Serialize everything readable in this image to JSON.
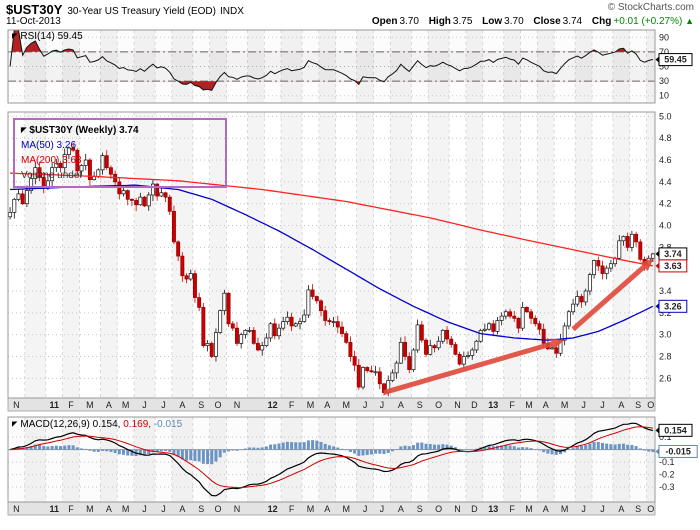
{
  "header": {
    "symbol": "$UST30Y",
    "title": "30-Year US Treasury Yield (EOD)",
    "exchange": "INDX",
    "copyright": "© StockCharts.com",
    "date": "11-Oct-2013",
    "quote": {
      "open_label": "Open",
      "open": "3.70",
      "high_label": "High",
      "high": "3.75",
      "low_label": "Low",
      "low": "3.70",
      "close_label": "Close",
      "close": "3.74",
      "chg_label": "Chg",
      "chg": "+0.01 (+0.27%)",
      "chg_arrow": "▲"
    }
  },
  "icons": {
    "panel_marker": "◤",
    "up_arrow": "▲"
  },
  "panels": {
    "rsi": {
      "label": "RSI(14) 59.45"
    },
    "price": {
      "legend": {
        "symbol": "$UST30Y (Weekly) 3.74",
        "ma50": "MA(50) 3.26",
        "ma200": "MA(200) 3.63",
        "volume": "Volume undef"
      }
    },
    "macd": {
      "label": "MACD(12,26,9) 0.154,",
      "signal_label": "0.169,",
      "hist_label": "-0.015"
    }
  },
  "chart_data": {
    "type": "candlestick",
    "symbol": "$UST30Y",
    "frequency": "weekly",
    "x_axis": {
      "weeks_total": 154,
      "month_boundaries": [
        [
          0,
          "N"
        ],
        [
          4,
          ""
        ],
        [
          9,
          "11"
        ],
        [
          13,
          "F"
        ],
        [
          17,
          "M"
        ],
        [
          22,
          "A"
        ],
        [
          26,
          "M"
        ],
        [
          30,
          "J"
        ],
        [
          35,
          "J"
        ],
        [
          39,
          "A"
        ],
        [
          44,
          "S"
        ],
        [
          48,
          "O"
        ],
        [
          52,
          "N"
        ],
        [
          57,
          ""
        ],
        [
          61,
          "12"
        ],
        [
          65,
          "F"
        ],
        [
          70,
          "M"
        ],
        [
          74,
          "A"
        ],
        [
          78,
          "M"
        ],
        [
          83,
          "J"
        ],
        [
          87,
          "J"
        ],
        [
          91,
          "A"
        ],
        [
          96,
          "S"
        ],
        [
          100,
          "O"
        ],
        [
          105,
          "N"
        ],
        [
          109,
          "D"
        ],
        [
          113,
          "13"
        ],
        [
          118,
          "F"
        ],
        [
          122,
          "M"
        ],
        [
          126,
          "A"
        ],
        [
          130,
          "M"
        ],
        [
          135,
          "J"
        ],
        [
          139,
          "J"
        ],
        [
          144,
          "A"
        ],
        [
          148,
          "S"
        ],
        [
          152,
          "O"
        ]
      ]
    },
    "price_panel": {
      "ylim": [
        2.42,
        5.04
      ],
      "yticks": [
        5.0,
        4.8,
        4.6,
        4.4,
        4.2,
        4.0,
        3.8,
        3.6,
        3.4,
        3.2,
        3.0,
        2.8,
        2.6
      ],
      "closes": [
        4.12,
        4.24,
        4.29,
        4.2,
        4.32,
        4.43,
        4.53,
        4.44,
        4.34,
        4.41,
        4.53,
        4.57,
        4.53,
        4.65,
        4.71,
        4.69,
        4.5,
        4.55,
        4.6,
        4.42,
        4.45,
        4.51,
        4.64,
        4.53,
        4.47,
        4.4,
        4.29,
        4.32,
        4.24,
        4.23,
        4.19,
        4.26,
        4.18,
        4.28,
        4.38,
        4.27,
        4.3,
        4.26,
        4.13,
        3.85,
        3.72,
        3.54,
        3.51,
        3.56,
        3.34,
        3.25,
        2.9,
        2.92,
        2.8,
        3.02,
        3.22,
        3.38,
        3.1,
        3.06,
        2.92,
        3.0,
        3.04,
        3.04,
        2.92,
        2.86,
        2.9,
        2.97,
        3.1,
        2.99,
        3.06,
        3.12,
        3.16,
        3.08,
        3.1,
        3.12,
        3.18,
        3.41,
        3.35,
        3.31,
        3.22,
        3.13,
        3.12,
        3.12,
        3.07,
        3.01,
        2.93,
        2.8,
        2.72,
        2.52,
        2.7,
        2.67,
        2.66,
        2.66,
        2.55,
        2.47,
        2.58,
        2.65,
        2.74,
        2.93,
        2.8,
        2.68,
        2.86,
        3.09,
        2.95,
        2.82,
        2.9,
        2.88,
        2.94,
        3.04,
        2.96,
        2.91,
        2.82,
        2.73,
        2.8,
        2.81,
        2.86,
        2.94,
        3.04,
        3.05,
        3.1,
        3.03,
        3.13,
        3.17,
        3.21,
        3.17,
        3.15,
        3.06,
        3.25,
        3.21,
        3.15,
        3.1,
        3.05,
        2.92,
        2.87,
        2.88,
        2.83,
        2.95,
        3.08,
        3.21,
        3.28,
        3.35,
        3.3,
        3.4,
        3.55,
        3.68,
        3.63,
        3.56,
        3.61,
        3.65,
        3.7,
        3.86,
        3.9,
        3.8,
        3.92,
        3.85,
        3.69,
        3.64,
        3.7,
        3.74
      ],
      "last_close": 3.74,
      "ma50_points": [
        [
          0,
          4.33
        ],
        [
          20,
          4.36
        ],
        [
          30,
          4.37
        ],
        [
          40,
          4.33
        ],
        [
          48,
          4.24
        ],
        [
          56,
          4.1
        ],
        [
          64,
          3.95
        ],
        [
          72,
          3.78
        ],
        [
          80,
          3.6
        ],
        [
          88,
          3.42
        ],
        [
          96,
          3.26
        ],
        [
          104,
          3.12
        ],
        [
          112,
          3.01
        ],
        [
          120,
          2.97
        ],
        [
          128,
          2.95
        ],
        [
          134,
          2.97
        ],
        [
          140,
          3.03
        ],
        [
          146,
          3.13
        ],
        [
          153,
          3.26
        ]
      ],
      "ma200_points": [
        [
          0,
          4.48
        ],
        [
          20,
          4.45
        ],
        [
          40,
          4.41
        ],
        [
          60,
          4.33
        ],
        [
          80,
          4.22
        ],
        [
          100,
          4.07
        ],
        [
          113,
          3.95
        ],
        [
          125,
          3.85
        ],
        [
          135,
          3.77
        ],
        [
          145,
          3.69
        ],
        [
          153,
          3.63
        ]
      ],
      "price_labels": [
        {
          "text": "3.74",
          "value": 3.74,
          "color": "#000000"
        },
        {
          "text": "3.63",
          "value": 3.63,
          "color": "#cc0000"
        },
        {
          "text": "3.26",
          "value": 3.26,
          "color": "#0000bb"
        }
      ]
    },
    "rsi_panel": {
      "period": 14,
      "last": 59.45,
      "yticks": [
        90,
        70,
        50,
        30,
        10
      ],
      "overbought": 70,
      "oversold": 30,
      "label_box": {
        "text": "59.45",
        "value": 59.45
      }
    },
    "macd_panel": {
      "fast": 12,
      "slow": 26,
      "signal": 9,
      "last_macd": 0.154,
      "last_signal": 0.169,
      "last_hist": -0.015,
      "yticks": [
        0.1,
        0.0,
        -0.1,
        -0.2,
        -0.3
      ],
      "label_boxes": [
        {
          "text": "0.154",
          "value": 0.154,
          "color": "#000000"
        },
        {
          "text": "-0.015",
          "value": -0.015,
          "color": "#5f87b5"
        }
      ]
    },
    "annotations": {
      "arrows": [
        {
          "from": [
            89,
            2.47
          ],
          "to": [
            132,
            2.95
          ]
        },
        {
          "from": [
            134,
            3.05
          ],
          "to": [
            153.2,
            3.7
          ]
        }
      ]
    },
    "colors": {
      "up": "#ffffff",
      "down": "#cc0000",
      "down_dark": "#990000",
      "ma50": "#0000cc",
      "ma200": "#ff2222",
      "macd_hist": "#6b93c4",
      "macd_signal": "#cc0000",
      "arrow": "#e0493a",
      "grid": "#cccccc",
      "stripe": "rgba(0,0,0,0.045)",
      "band": "#e3e3e3",
      "legend_box": "#b36ac0",
      "rsi_fill": "#b22222"
    }
  }
}
